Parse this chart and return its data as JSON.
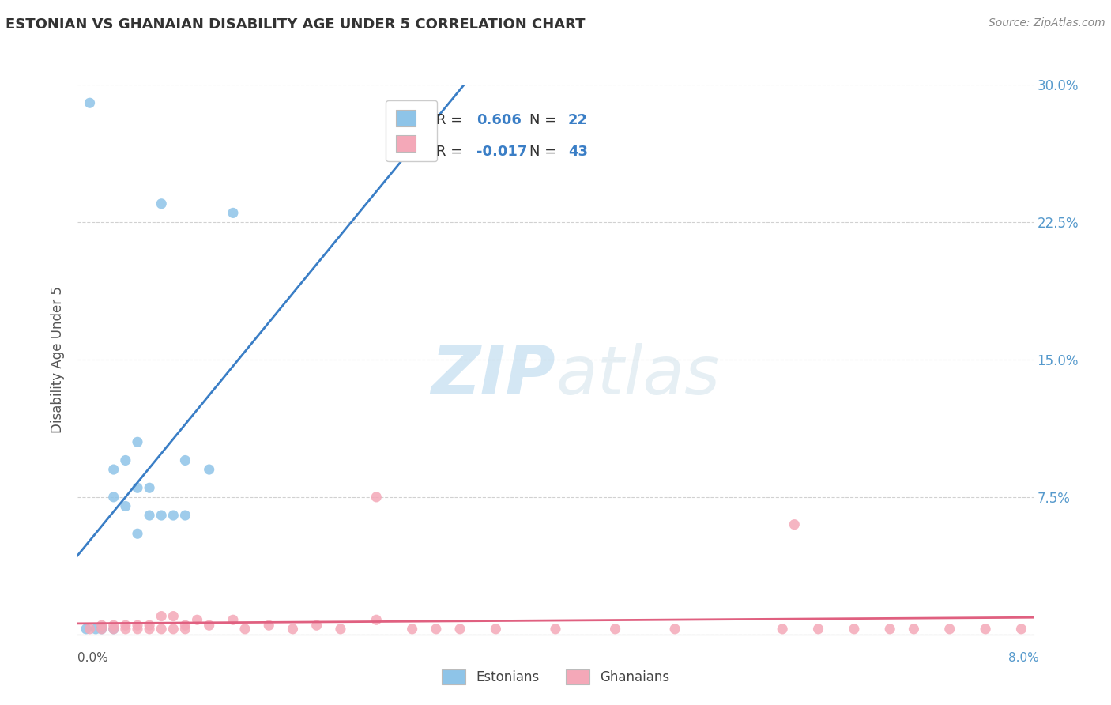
{
  "title": "ESTONIAN VS GHANAIAN DISABILITY AGE UNDER 5 CORRELATION CHART",
  "source_text": "Source: ZipAtlas.com",
  "ylabel": "Disability Age Under 5",
  "xlim": [
    0.0,
    0.08
  ],
  "ylim": [
    0.0,
    0.3
  ],
  "ytick_vals": [
    0.0,
    0.075,
    0.15,
    0.225,
    0.3
  ],
  "ytick_labels_right": [
    "",
    "7.5%",
    "15.0%",
    "22.5%",
    "30.0%"
  ],
  "color_estonian": "#8ec4e8",
  "color_ghanaian": "#f4a8b8",
  "color_line_estonian": "#3a7ec6",
  "color_line_ghanaian": "#e06080",
  "color_tick_right": "#5599cc",
  "watermark_color": "#d8eaf5",
  "background_color": "#ffffff",
  "grid_color": "#cccccc",
  "title_color": "#333333",
  "source_color": "#888888",
  "axis_label_color": "#555555",
  "estonian_x": [
    0.0007,
    0.001,
    0.0015,
    0.002,
    0.002,
    0.003,
    0.003,
    0.003,
    0.004,
    0.004,
    0.005,
    0.005,
    0.005,
    0.006,
    0.006,
    0.007,
    0.007,
    0.008,
    0.009,
    0.009,
    0.011,
    0.013
  ],
  "estonian_y": [
    0.003,
    0.29,
    0.003,
    0.003,
    0.004,
    0.003,
    0.075,
    0.09,
    0.07,
    0.095,
    0.08,
    0.105,
    0.055,
    0.065,
    0.08,
    0.065,
    0.235,
    0.065,
    0.095,
    0.065,
    0.09,
    0.23
  ],
  "ghanaian_x": [
    0.001,
    0.002,
    0.002,
    0.003,
    0.003,
    0.004,
    0.004,
    0.005,
    0.005,
    0.006,
    0.006,
    0.007,
    0.007,
    0.008,
    0.008,
    0.009,
    0.009,
    0.01,
    0.011,
    0.013,
    0.014,
    0.016,
    0.018,
    0.02,
    0.022,
    0.025,
    0.025,
    0.028,
    0.03,
    0.032,
    0.035,
    0.04,
    0.045,
    0.05,
    0.059,
    0.06,
    0.062,
    0.065,
    0.068,
    0.07,
    0.073,
    0.076,
    0.079
  ],
  "ghanaian_y": [
    0.003,
    0.003,
    0.005,
    0.003,
    0.005,
    0.003,
    0.005,
    0.003,
    0.005,
    0.003,
    0.005,
    0.003,
    0.01,
    0.003,
    0.01,
    0.003,
    0.005,
    0.008,
    0.005,
    0.008,
    0.003,
    0.005,
    0.003,
    0.005,
    0.003,
    0.008,
    0.075,
    0.003,
    0.003,
    0.003,
    0.003,
    0.003,
    0.003,
    0.003,
    0.003,
    0.06,
    0.003,
    0.003,
    0.003,
    0.003,
    0.003,
    0.003,
    0.003
  ]
}
